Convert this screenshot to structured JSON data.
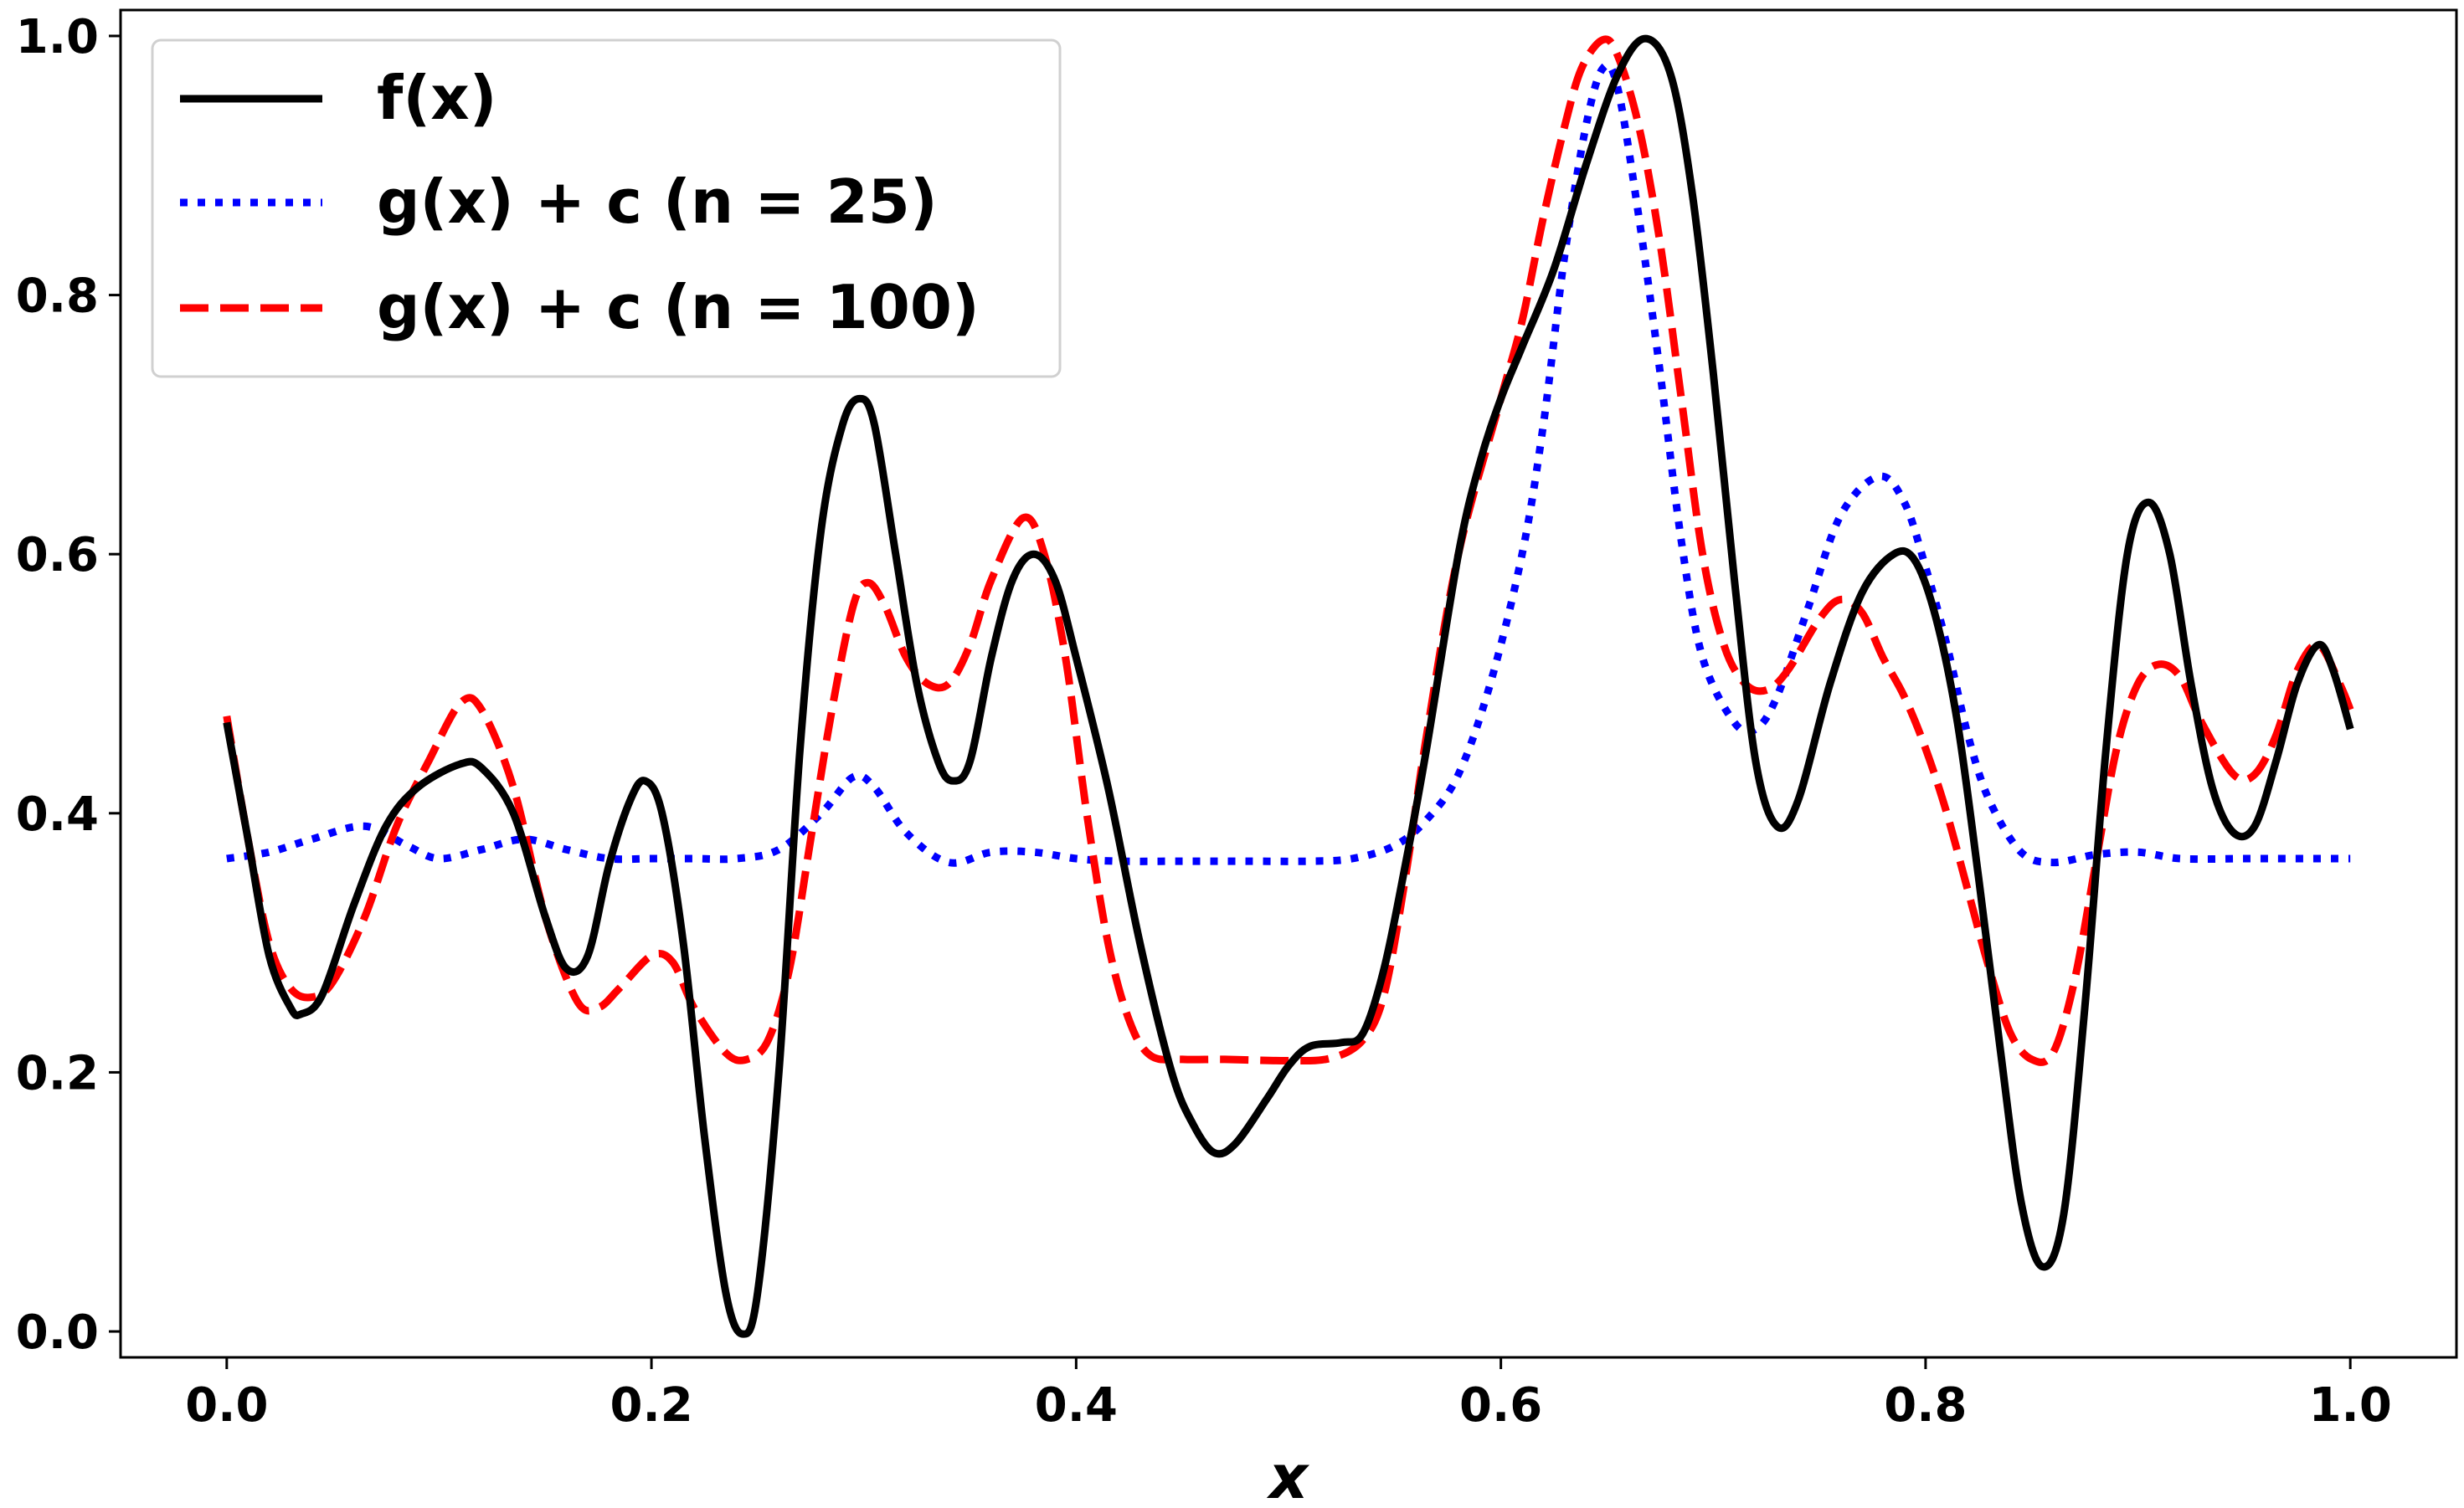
{
  "chart_data": {
    "type": "line",
    "title": "",
    "xlabel": "x",
    "ylabel": "",
    "xlim": [
      -0.05,
      1.05
    ],
    "ylim": [
      -0.02,
      1.02
    ],
    "x_ticks": [
      "0.0",
      "0.2",
      "0.4",
      "0.6",
      "0.8",
      "1.0"
    ],
    "y_ticks": [
      "0.0",
      "0.2",
      "0.4",
      "0.6",
      "0.8",
      "1.0"
    ],
    "grid": false,
    "legend_position": "top-left",
    "series": [
      {
        "name": "f(x)",
        "color": "#000000",
        "style": "solid",
        "points": [
          [
            0.0,
            0.47
          ],
          [
            0.01,
            0.38
          ],
          [
            0.02,
            0.29
          ],
          [
            0.03,
            0.25
          ],
          [
            0.035,
            0.245
          ],
          [
            0.045,
            0.26
          ],
          [
            0.06,
            0.33
          ],
          [
            0.075,
            0.39
          ],
          [
            0.09,
            0.42
          ],
          [
            0.11,
            0.438
          ],
          [
            0.12,
            0.435
          ],
          [
            0.135,
            0.4
          ],
          [
            0.15,
            0.32
          ],
          [
            0.16,
            0.28
          ],
          [
            0.17,
            0.29
          ],
          [
            0.18,
            0.36
          ],
          [
            0.19,
            0.41
          ],
          [
            0.197,
            0.425
          ],
          [
            0.205,
            0.4
          ],
          [
            0.215,
            0.3
          ],
          [
            0.225,
            0.15
          ],
          [
            0.235,
            0.03
          ],
          [
            0.243,
            -0.002
          ],
          [
            0.25,
            0.03
          ],
          [
            0.26,
            0.2
          ],
          [
            0.27,
            0.45
          ],
          [
            0.28,
            0.62
          ],
          [
            0.29,
            0.7
          ],
          [
            0.298,
            0.72
          ],
          [
            0.305,
            0.7
          ],
          [
            0.315,
            0.6
          ],
          [
            0.325,
            0.5
          ],
          [
            0.335,
            0.44
          ],
          [
            0.342,
            0.425
          ],
          [
            0.35,
            0.44
          ],
          [
            0.36,
            0.52
          ],
          [
            0.37,
            0.58
          ],
          [
            0.38,
            0.6
          ],
          [
            0.39,
            0.58
          ],
          [
            0.4,
            0.52
          ],
          [
            0.415,
            0.42
          ],
          [
            0.43,
            0.3
          ],
          [
            0.445,
            0.2
          ],
          [
            0.455,
            0.16
          ],
          [
            0.465,
            0.138
          ],
          [
            0.475,
            0.145
          ],
          [
            0.49,
            0.18
          ],
          [
            0.5,
            0.205
          ],
          [
            0.51,
            0.22
          ],
          [
            0.525,
            0.223
          ],
          [
            0.535,
            0.23
          ],
          [
            0.545,
            0.28
          ],
          [
            0.555,
            0.36
          ],
          [
            0.565,
            0.45
          ],
          [
            0.58,
            0.6
          ],
          [
            0.59,
            0.67
          ],
          [
            0.6,
            0.72
          ],
          [
            0.61,
            0.76
          ],
          [
            0.625,
            0.82
          ],
          [
            0.64,
            0.9
          ],
          [
            0.655,
            0.97
          ],
          [
            0.668,
            0.998
          ],
          [
            0.68,
            0.97
          ],
          [
            0.69,
            0.88
          ],
          [
            0.7,
            0.74
          ],
          [
            0.71,
            0.58
          ],
          [
            0.72,
            0.44
          ],
          [
            0.73,
            0.39
          ],
          [
            0.74,
            0.41
          ],
          [
            0.755,
            0.5
          ],
          [
            0.77,
            0.57
          ],
          [
            0.785,
            0.6
          ],
          [
            0.795,
            0.595
          ],
          [
            0.805,
            0.55
          ],
          [
            0.815,
            0.47
          ],
          [
            0.825,
            0.35
          ],
          [
            0.835,
            0.22
          ],
          [
            0.845,
            0.1
          ],
          [
            0.855,
            0.05
          ],
          [
            0.865,
            0.09
          ],
          [
            0.875,
            0.25
          ],
          [
            0.885,
            0.45
          ],
          [
            0.895,
            0.6
          ],
          [
            0.905,
            0.64
          ],
          [
            0.915,
            0.6
          ],
          [
            0.925,
            0.5
          ],
          [
            0.935,
            0.42
          ],
          [
            0.945,
            0.385
          ],
          [
            0.955,
            0.39
          ],
          [
            0.965,
            0.44
          ],
          [
            0.975,
            0.5
          ],
          [
            0.985,
            0.53
          ],
          [
            0.992,
            0.51
          ],
          [
            1.0,
            0.465
          ]
        ]
      },
      {
        "name": "g(x) + c (n = 25)",
        "color": "#0000ff",
        "style": "dotted",
        "points": [
          [
            0.0,
            0.365
          ],
          [
            0.02,
            0.37
          ],
          [
            0.04,
            0.38
          ],
          [
            0.065,
            0.39
          ],
          [
            0.085,
            0.375
          ],
          [
            0.1,
            0.365
          ],
          [
            0.12,
            0.372
          ],
          [
            0.14,
            0.38
          ],
          [
            0.16,
            0.372
          ],
          [
            0.18,
            0.365
          ],
          [
            0.2,
            0.365
          ],
          [
            0.22,
            0.365
          ],
          [
            0.24,
            0.365
          ],
          [
            0.26,
            0.372
          ],
          [
            0.28,
            0.4
          ],
          [
            0.295,
            0.428
          ],
          [
            0.305,
            0.42
          ],
          [
            0.32,
            0.385
          ],
          [
            0.34,
            0.362
          ],
          [
            0.36,
            0.37
          ],
          [
            0.38,
            0.37
          ],
          [
            0.4,
            0.365
          ],
          [
            0.42,
            0.363
          ],
          [
            0.45,
            0.363
          ],
          [
            0.48,
            0.363
          ],
          [
            0.51,
            0.363
          ],
          [
            0.53,
            0.365
          ],
          [
            0.55,
            0.375
          ],
          [
            0.565,
            0.395
          ],
          [
            0.58,
            0.43
          ],
          [
            0.595,
            0.5
          ],
          [
            0.61,
            0.6
          ],
          [
            0.62,
            0.7
          ],
          [
            0.63,
            0.83
          ],
          [
            0.64,
            0.93
          ],
          [
            0.648,
            0.975
          ],
          [
            0.655,
            0.96
          ],
          [
            0.665,
            0.86
          ],
          [
            0.675,
            0.74
          ],
          [
            0.685,
            0.61
          ],
          [
            0.695,
            0.52
          ],
          [
            0.71,
            0.47
          ],
          [
            0.72,
            0.465
          ],
          [
            0.73,
            0.49
          ],
          [
            0.745,
            0.56
          ],
          [
            0.76,
            0.63
          ],
          [
            0.778,
            0.66
          ],
          [
            0.79,
            0.64
          ],
          [
            0.8,
            0.59
          ],
          [
            0.81,
            0.53
          ],
          [
            0.82,
            0.46
          ],
          [
            0.83,
            0.41
          ],
          [
            0.845,
            0.37
          ],
          [
            0.86,
            0.362
          ],
          [
            0.88,
            0.368
          ],
          [
            0.9,
            0.37
          ],
          [
            0.92,
            0.365
          ],
          [
            0.95,
            0.365
          ],
          [
            0.97,
            0.365
          ],
          [
            1.0,
            0.365
          ]
        ]
      },
      {
        "name": "g(x) + c (n = 100)",
        "color": "#ff0000",
        "style": "dashed",
        "points": [
          [
            0.0,
            0.475
          ],
          [
            0.01,
            0.38
          ],
          [
            0.02,
            0.3
          ],
          [
            0.03,
            0.265
          ],
          [
            0.04,
            0.258
          ],
          [
            0.05,
            0.27
          ],
          [
            0.065,
            0.32
          ],
          [
            0.08,
            0.39
          ],
          [
            0.095,
            0.44
          ],
          [
            0.11,
            0.485
          ],
          [
            0.12,
            0.48
          ],
          [
            0.135,
            0.42
          ],
          [
            0.15,
            0.32
          ],
          [
            0.165,
            0.255
          ],
          [
            0.175,
            0.25
          ],
          [
            0.185,
            0.265
          ],
          [
            0.2,
            0.29
          ],
          [
            0.21,
            0.285
          ],
          [
            0.22,
            0.25
          ],
          [
            0.235,
            0.215
          ],
          [
            0.245,
            0.21
          ],
          [
            0.255,
            0.225
          ],
          [
            0.265,
            0.28
          ],
          [
            0.275,
            0.38
          ],
          [
            0.285,
            0.48
          ],
          [
            0.295,
            0.56
          ],
          [
            0.302,
            0.578
          ],
          [
            0.31,
            0.56
          ],
          [
            0.32,
            0.52
          ],
          [
            0.33,
            0.5
          ],
          [
            0.34,
            0.5
          ],
          [
            0.35,
            0.53
          ],
          [
            0.36,
            0.58
          ],
          [
            0.375,
            0.628
          ],
          [
            0.385,
            0.6
          ],
          [
            0.395,
            0.52
          ],
          [
            0.405,
            0.4
          ],
          [
            0.415,
            0.3
          ],
          [
            0.425,
            0.24
          ],
          [
            0.435,
            0.213
          ],
          [
            0.45,
            0.21
          ],
          [
            0.47,
            0.21
          ],
          [
            0.5,
            0.209
          ],
          [
            0.52,
            0.211
          ],
          [
            0.535,
            0.225
          ],
          [
            0.545,
            0.26
          ],
          [
            0.555,
            0.35
          ],
          [
            0.565,
            0.46
          ],
          [
            0.58,
            0.6
          ],
          [
            0.6,
            0.72
          ],
          [
            0.61,
            0.78
          ],
          [
            0.62,
            0.86
          ],
          [
            0.63,
            0.93
          ],
          [
            0.638,
            0.975
          ],
          [
            0.648,
            0.997
          ],
          [
            0.655,
            0.985
          ],
          [
            0.665,
            0.93
          ],
          [
            0.675,
            0.84
          ],
          [
            0.685,
            0.72
          ],
          [
            0.695,
            0.6
          ],
          [
            0.705,
            0.53
          ],
          [
            0.715,
            0.5
          ],
          [
            0.725,
            0.495
          ],
          [
            0.735,
            0.51
          ],
          [
            0.75,
            0.55
          ],
          [
            0.76,
            0.565
          ],
          [
            0.77,
            0.555
          ],
          [
            0.78,
            0.52
          ],
          [
            0.79,
            0.49
          ],
          [
            0.8,
            0.45
          ],
          [
            0.81,
            0.4
          ],
          [
            0.82,
            0.34
          ],
          [
            0.83,
            0.28
          ],
          [
            0.84,
            0.23
          ],
          [
            0.85,
            0.21
          ],
          [
            0.86,
            0.215
          ],
          [
            0.87,
            0.27
          ],
          [
            0.88,
            0.36
          ],
          [
            0.89,
            0.45
          ],
          [
            0.9,
            0.5
          ],
          [
            0.91,
            0.515
          ],
          [
            0.92,
            0.505
          ],
          [
            0.93,
            0.47
          ],
          [
            0.945,
            0.43
          ],
          [
            0.955,
            0.43
          ],
          [
            0.965,
            0.46
          ],
          [
            0.975,
            0.51
          ],
          [
            0.985,
            0.53
          ],
          [
            0.995,
            0.5
          ],
          [
            1.0,
            0.48
          ]
        ]
      }
    ]
  }
}
